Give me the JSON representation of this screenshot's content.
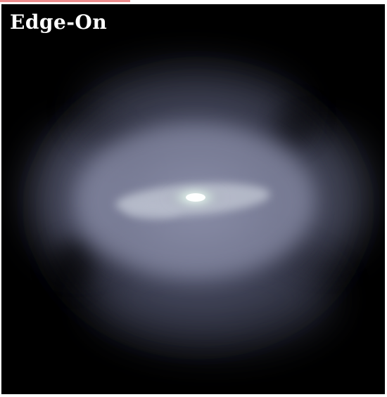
{
  "panel": {
    "label": "Edge-On"
  },
  "colors": {
    "background": "#000000",
    "halo": "#7a7f99",
    "core": "#f4fff6",
    "accent": "#e25a5a"
  }
}
